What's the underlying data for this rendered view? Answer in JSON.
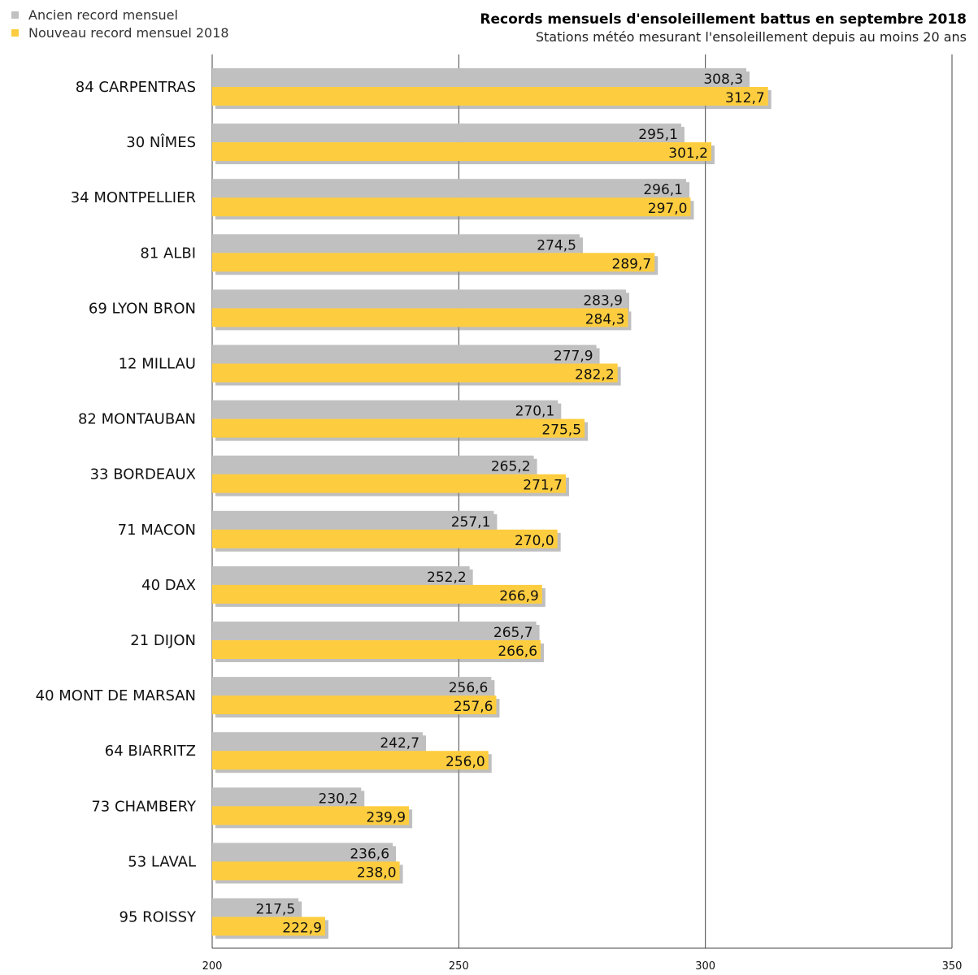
{
  "legend": [
    {
      "label": "Ancien record mensuel",
      "color": "#c0c0c0"
    },
    {
      "label": "Nouveau record mensuel 2018",
      "color": "#fecd3f"
    }
  ],
  "chart_data": {
    "type": "bar",
    "orientation": "horizontal",
    "title": "Records mensuels d'ensoleillement battus en septembre 2018",
    "subtitle": "Stations météo mesurant l'ensoleillement depuis au moins 20 ans",
    "categories": [
      "84 CARPENTRAS",
      "30 NÎMES",
      "34 MONTPELLIER",
      "81 ALBI",
      "69 LYON BRON",
      "12 MILLAU",
      "82 MONTAUBAN",
      "33 BORDEAUX",
      "71 MACON",
      "40 DAX",
      "21 DIJON",
      "40 MONT DE MARSAN",
      "64 BIARRITZ",
      "73 CHAMBERY",
      "53 LAVAL",
      "95 ROISSY"
    ],
    "series": [
      {
        "name": "Ancien record mensuel",
        "color": "#c0c0c0",
        "values": [
          308.3,
          295.1,
          296.1,
          274.5,
          283.9,
          277.9,
          270.1,
          265.2,
          257.1,
          252.2,
          265.7,
          256.6,
          242.7,
          230.2,
          236.6,
          217.5
        ],
        "labels": [
          "308,3",
          "295,1",
          "296,1",
          "274,5",
          "283,9",
          "277,9",
          "270,1",
          "265,2",
          "257,1",
          "252,2",
          "265,7",
          "256,6",
          "242,7",
          "230,2",
          "236,6",
          "217,5"
        ]
      },
      {
        "name": "Nouveau record mensuel 2018",
        "color": "#fecd3f",
        "values": [
          312.7,
          301.2,
          297.0,
          289.7,
          284.3,
          282.2,
          275.5,
          271.7,
          270.0,
          266.9,
          266.6,
          257.6,
          256.0,
          239.9,
          238.0,
          222.9
        ],
        "labels": [
          "312,7",
          "301,2",
          "297,0",
          "289,7",
          "284,3",
          "282,2",
          "275,5",
          "271,7",
          "270,0",
          "266,9",
          "266,6",
          "257,6",
          "256,0",
          "239,9",
          "238,0",
          "222,9"
        ]
      }
    ],
    "xlim": [
      200,
      350
    ],
    "xticks": [
      200,
      250,
      300,
      350
    ],
    "xtick_labels": [
      "200",
      "250",
      "300",
      "350"
    ],
    "grid": "vertical",
    "legend_position": "top-left"
  }
}
